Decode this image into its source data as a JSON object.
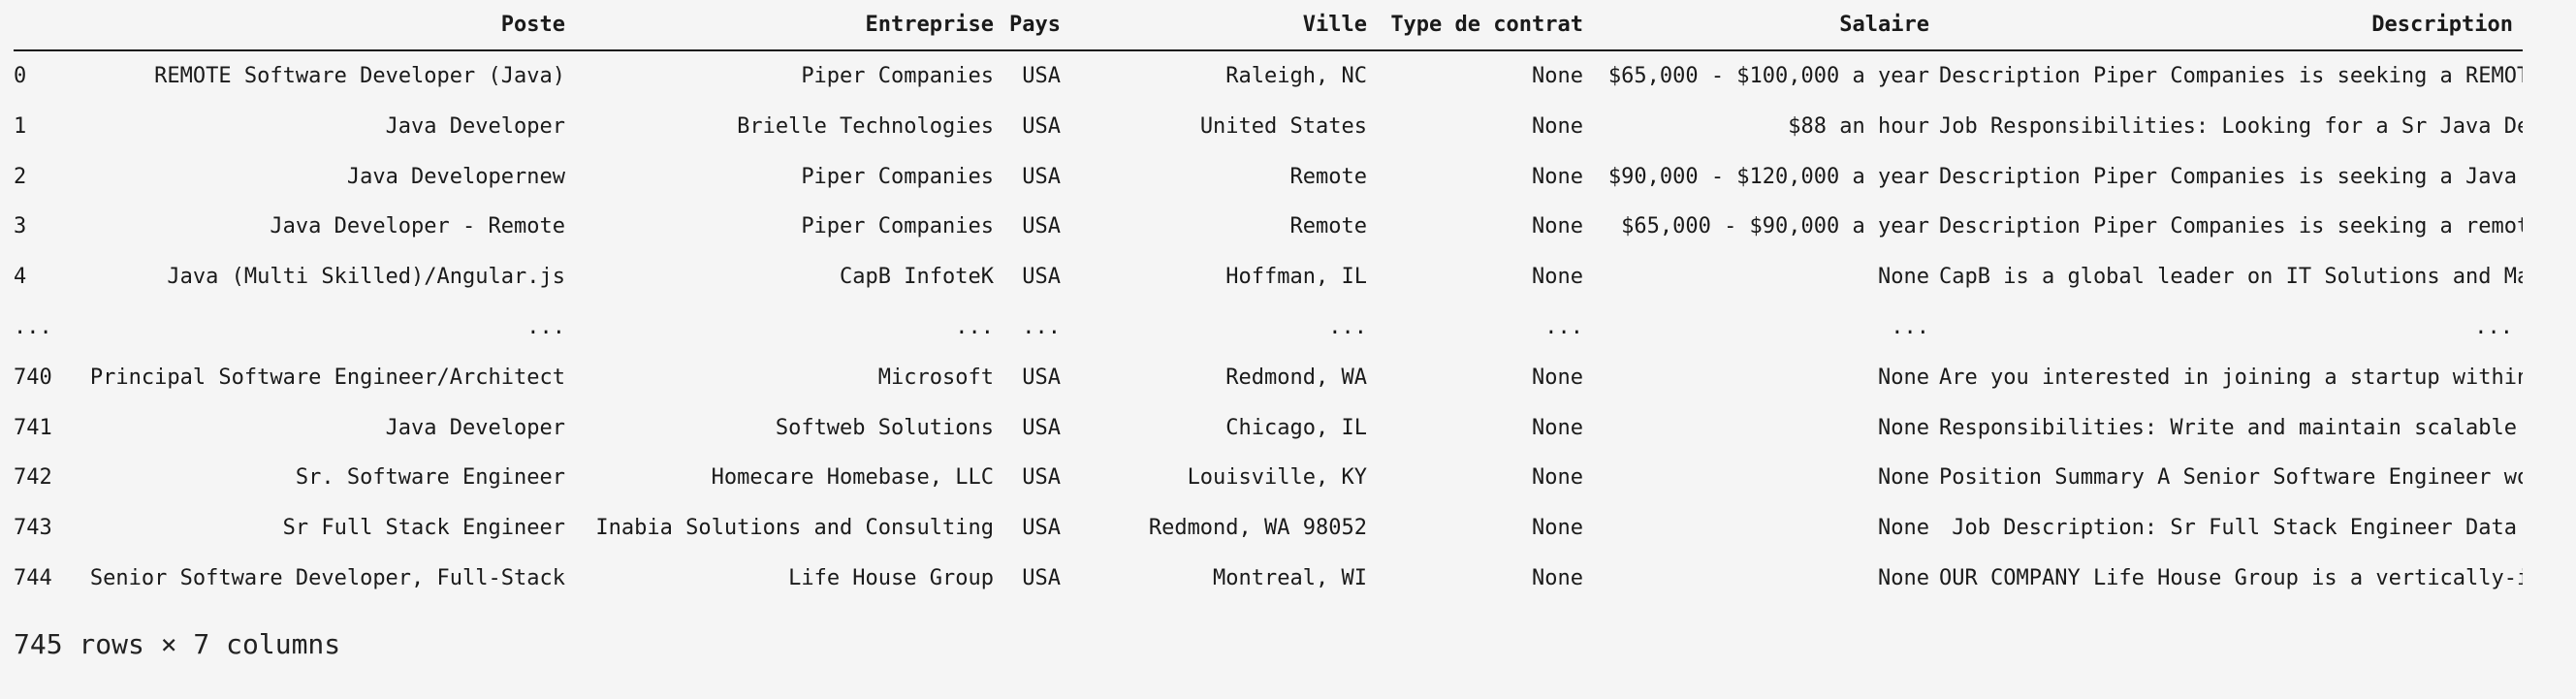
{
  "table": {
    "columns": [
      "",
      "Poste",
      "Entreprise",
      "Pays",
      "Ville",
      "Type de contrat",
      "Salaire",
      "Description"
    ],
    "rows": [
      [
        "0",
        "REMOTE Software Developer (Java)",
        "Piper Companies",
        "USA",
        "Raleigh, NC",
        "None",
        "$65,000 - $100,000 a year",
        "Description Piper Companies is seeking a REMOT..."
      ],
      [
        "1",
        "Java Developer",
        "Brielle Technologies",
        "USA",
        "United States",
        "None",
        "$88 an hour",
        "Job Responsibilities: Looking for a Sr Java De..."
      ],
      [
        "2",
        "Java Developernew",
        "Piper Companies",
        "USA",
        "Remote",
        "None",
        "$90,000 - $120,000 a year",
        "Description Piper Companies is seeking a Java ..."
      ],
      [
        "3",
        "Java Developer - Remote",
        "Piper Companies",
        "USA",
        "Remote",
        "None",
        "$65,000 - $90,000 a year",
        "Description Piper Companies is seeking a remot..."
      ],
      [
        "4",
        "Java (Multi Skilled)/Angular.js",
        "CapB InfoteK",
        "USA",
        "Hoffman, IL",
        "None",
        "None",
        "CapB is a global leader on IT Solutions and Ma..."
      ],
      [
        "...",
        "...",
        "...",
        "...",
        "...",
        "...",
        "...",
        "..."
      ],
      [
        "740",
        "Principal Software Engineer/Architect",
        "Microsoft",
        "USA",
        "Redmond, WA",
        "None",
        "None",
        "Are you interested in joining a startup within..."
      ],
      [
        "741",
        "Java Developer",
        "Softweb Solutions",
        "USA",
        "Chicago, IL",
        "None",
        "None",
        "Responsibilities: Write and maintain scalable ..."
      ],
      [
        "742",
        "Sr. Software Engineer",
        "Homecare Homebase, LLC",
        "USA",
        "Louisville, KY",
        "None",
        "None",
        "Position Summary A Senior Software Engineer wo..."
      ],
      [
        "743",
        "Sr Full Stack Engineer",
        "Inabia Solutions and Consulting",
        "USA",
        "Redmond, WA 98052",
        "None",
        "None",
        " Job Description: Sr Full Stack Engineer Data ..."
      ],
      [
        "744",
        "Senior Software Developer, Full-Stack",
        "Life House Group",
        "USA",
        "Montreal, WI",
        "None",
        "None",
        "OUR COMPANY Life House Group is a vertically-i..."
      ]
    ]
  },
  "footer": {
    "shape": "745 rows × 7 columns"
  }
}
